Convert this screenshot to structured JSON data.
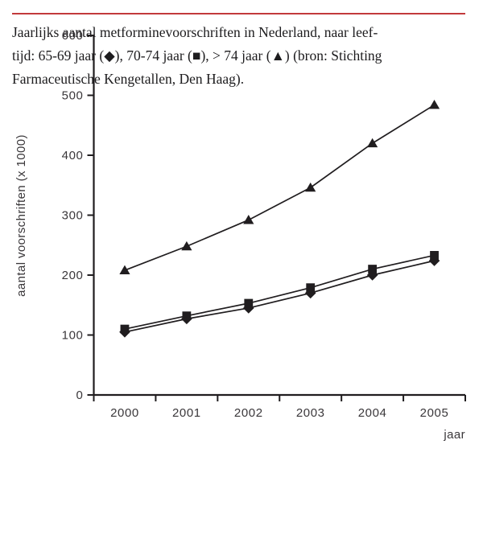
{
  "chart_data": {
    "type": "line",
    "title": "",
    "xlabel": "jaar",
    "ylabel": "aantal voorschriften (x 1000)",
    "x": [
      "2000",
      "2001",
      "2002",
      "2003",
      "2004",
      "2005"
    ],
    "ylim": [
      0,
      600
    ],
    "yticks": [
      0,
      100,
      200,
      300,
      400,
      500,
      600
    ],
    "grid": false,
    "legend_position": "in-caption",
    "ink_color": "#201d1f",
    "series": [
      {
        "name": "65-69 jaar",
        "marker": "diamond",
        "values": [
          105,
          127,
          145,
          170,
          200,
          224
        ]
      },
      {
        "name": "70-74 jaar",
        "marker": "square",
        "values": [
          110,
          132,
          153,
          179,
          210,
          233
        ]
      },
      {
        "name": "> 74 jaar",
        "marker": "triangle",
        "values": [
          208,
          248,
          292,
          346,
          420,
          484
        ]
      }
    ]
  },
  "caption": {
    "divider_color": "#c23a3c",
    "lines": [
      "Jaarlijks aantal metforminevoorschriften in Nederland, naar leef-",
      "tijd: 65-69 jaar (◆), 70-74 jaar (■), > 74 jaar (▲) (bron: Stichting",
      "Farmaceutische Kengetallen, Den Haag)."
    ]
  }
}
